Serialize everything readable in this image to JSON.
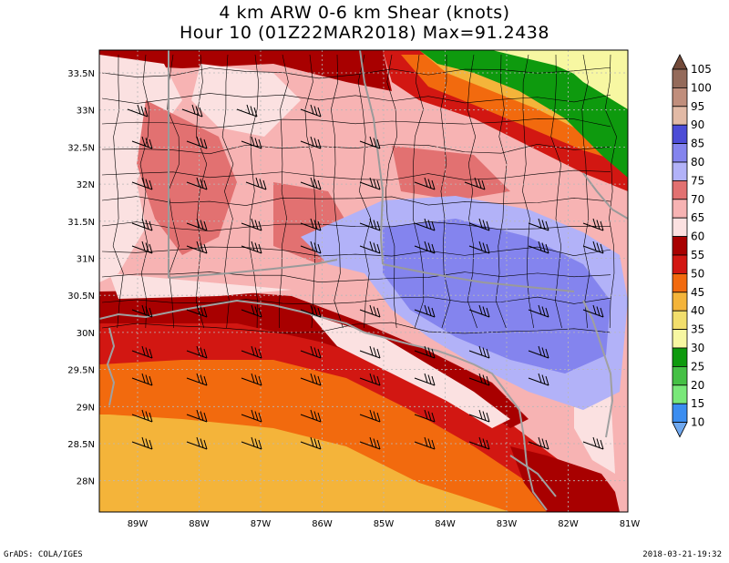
{
  "title_line1": "4 km ARW 0-6 km Shear (knots)",
  "title_line2": "Hour 10 (01Z22MAR2018) Max=91.2438",
  "footer_left": "GrADS: COLA/IGES",
  "footer_right": "2018-03-21-19:32",
  "lat_labels": [
    "33.5N",
    "33N",
    "32.5N",
    "32N",
    "31.5N",
    "31N",
    "30.5N",
    "30N",
    "29.5N",
    "29N",
    "28.5N",
    "28N"
  ],
  "lon_labels": [
    "89W",
    "88W",
    "87W",
    "86W",
    "85W",
    "84W",
    "83W",
    "82W",
    "81W"
  ],
  "colorbar": {
    "levels": [
      "10",
      "15",
      "20",
      "25",
      "30",
      "35",
      "40",
      "45",
      "50",
      "55",
      "60",
      "65",
      "70",
      "75",
      "80",
      "85",
      "90",
      "95",
      "100",
      "105"
    ],
    "colors": [
      "#6fa8ef",
      "#3b8df0",
      "#79e879",
      "#45c045",
      "#0e9a0e",
      "#f7f7a2",
      "#f2de6c",
      "#f4b43a",
      "#f26a0e",
      "#d21712",
      "#a80000",
      "#fbe1e1",
      "#f7b3b3",
      "#e27171",
      "#b2b2f8",
      "#8484ee",
      "#4c4cd6",
      "#e2baa6",
      "#c08e7c",
      "#946a5a",
      "#724a3a"
    ]
  },
  "map_colors": {
    "c40": "#f4b43a",
    "c50": "#f26a0e",
    "c55": "#d21712",
    "c60": "#a80000",
    "c65": "#fbe1e1",
    "c70": "#f7b3b3",
    "c75": "#e27171",
    "c80": "#b2b2f8",
    "c85": "#8484ee",
    "c35": "#f7f7a2",
    "c30": "#0e9a0e",
    "c45": "#f2de6c"
  }
}
